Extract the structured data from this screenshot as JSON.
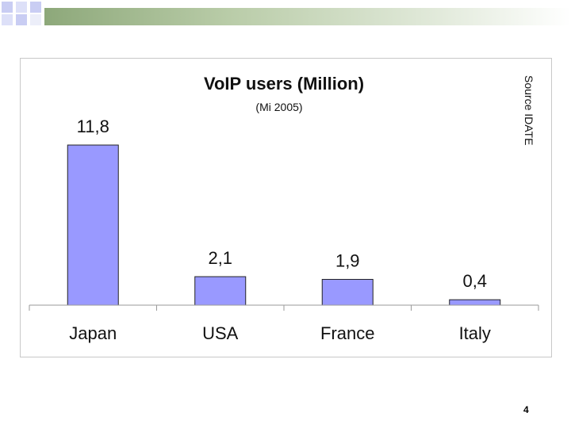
{
  "slide": {
    "page_number": "4",
    "source_note": "Source IDATE"
  },
  "colors": {
    "bar_fill": "#9999ff",
    "bar_stroke": "#222222",
    "band_green": "#8da87a",
    "square_blue": "#c9cdf3"
  },
  "chart_data": {
    "type": "bar",
    "title": "VoIP users (Million)",
    "subtitle": "(Mi 2005)",
    "categories": [
      "Japan",
      "USA",
      "France",
      "Italy"
    ],
    "values": [
      11.8,
      2.1,
      1.9,
      0.4
    ],
    "value_labels": [
      "11,8",
      "2,1",
      "1,9",
      "0,4"
    ],
    "ylim": [
      0,
      11.8
    ],
    "grid": false,
    "legend": "none"
  }
}
